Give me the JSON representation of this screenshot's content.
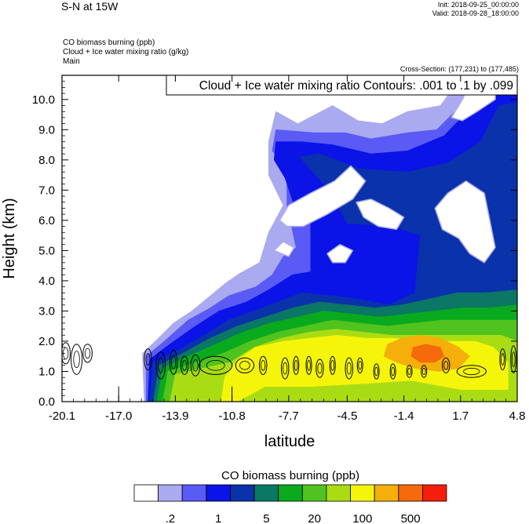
{
  "header": {
    "title": "S-N at 15W",
    "init": "Init: 2018-09-25_00:00:00",
    "valid": "Valid: 2018-09-28_18:00:00",
    "fields": [
      "CO biomass burning   (ppb)",
      "Cloud + Ice water mixing ratio   (g/kg)",
      "Main"
    ],
    "cross_section": "Cross-Section: (177,231) to (177,485)"
  },
  "chart_data": {
    "type": "heatmap",
    "contour_label": "Cloud + Ice water mixing ratio Contours: .001 to .1 by .099",
    "xlabel": "latitude",
    "ylabel": "Height (km)",
    "xlim": [
      -20.1,
      4.8
    ],
    "ylim": [
      0.0,
      10.8
    ],
    "x_ticks": [
      "-20.1",
      "-17.0",
      "-13.9",
      "-10.8",
      "-7.7",
      "-4.5",
      "-1.4",
      "1.7",
      "4.8"
    ],
    "y_ticks": [
      "0.0",
      "1.0",
      "2.0",
      "3.0",
      "4.0",
      "5.0",
      "6.0",
      "7.0",
      "8.0",
      "9.0",
      "10.0"
    ],
    "colorbar": {
      "title": "CO biomass burning  (ppb)",
      "colors": [
        "#ffffff",
        "#aaaaf0",
        "#5a5af5",
        "#0a14e6",
        "#0a32aa",
        "#0a7864",
        "#0aaa1e",
        "#50c31e",
        "#aadc14",
        "#f5f50a",
        "#f5af0a",
        "#f56a0a",
        "#f51e0a"
      ],
      "labels": [
        ".2",
        "1",
        "5",
        "20",
        "100",
        "500"
      ],
      "label_slots": [
        1.5,
        3.5,
        5.5,
        7.5,
        9.5,
        11.5
      ]
    },
    "bands": [
      {
        "level": 1,
        "points": [
          [
            -15.6,
            0
          ],
          [
            -15.7,
            1.6
          ],
          [
            -15.0,
            2.0
          ],
          [
            -14.0,
            2.6
          ],
          [
            -13.0,
            3.0
          ],
          [
            -12.0,
            3.5
          ],
          [
            -11.2,
            3.9
          ],
          [
            -10.5,
            4.2
          ],
          [
            -9.3,
            4.6
          ],
          [
            -8.8,
            5.6
          ],
          [
            -8.0,
            6.5
          ],
          [
            -8.8,
            7.5
          ],
          [
            -8.8,
            8.6
          ],
          [
            -8.4,
            9.6
          ],
          [
            -7.2,
            9.2
          ],
          [
            -5.3,
            9.8
          ],
          [
            -3.9,
            9.3
          ],
          [
            -2.6,
            9.2
          ],
          [
            -1.2,
            9.6
          ],
          [
            0.6,
            9.8
          ],
          [
            1.8,
            10.8
          ],
          [
            4.8,
            10.8
          ],
          [
            4.8,
            0
          ]
        ]
      },
      {
        "level": 2,
        "points": [
          [
            -15.5,
            0
          ],
          [
            -15.5,
            1.5
          ],
          [
            -14.5,
            2.0
          ],
          [
            -13.2,
            2.7
          ],
          [
            -12.0,
            3.1
          ],
          [
            -11.0,
            3.5
          ],
          [
            -9.5,
            3.8
          ],
          [
            -8.6,
            4.2
          ],
          [
            -8.0,
            4.8
          ],
          [
            -7.3,
            5.1
          ],
          [
            -7.8,
            6.5
          ],
          [
            -7.8,
            7.7
          ],
          [
            -8.6,
            8.3
          ],
          [
            -8.4,
            9.0
          ],
          [
            -6.3,
            8.9
          ],
          [
            -4.6,
            8.9
          ],
          [
            -3.2,
            8.7
          ],
          [
            -1.2,
            8.9
          ],
          [
            0.4,
            9.0
          ],
          [
            2.4,
            10.2
          ],
          [
            3.5,
            10.8
          ],
          [
            4.8,
            10.8
          ],
          [
            4.8,
            0
          ]
        ]
      },
      {
        "level": 3,
        "points": [
          [
            -15.4,
            0
          ],
          [
            -15.3,
            1.4
          ],
          [
            -14.2,
            1.9
          ],
          [
            -12.8,
            2.5
          ],
          [
            -11.5,
            3.0
          ],
          [
            -10.0,
            3.3
          ],
          [
            -8.8,
            3.7
          ],
          [
            -7.5,
            4.2
          ],
          [
            -6.5,
            4.3
          ],
          [
            -6.5,
            6.0
          ],
          [
            -7.4,
            6.5
          ],
          [
            -7.9,
            7.4
          ],
          [
            -8.5,
            8.0
          ],
          [
            -8.4,
            8.6
          ],
          [
            -7.0,
            8.6
          ],
          [
            -5.3,
            8.5
          ],
          [
            -3.2,
            8.2
          ],
          [
            -1.2,
            8.3
          ],
          [
            0.8,
            8.8
          ],
          [
            2.4,
            9.8
          ],
          [
            3.6,
            10.6
          ],
          [
            4.8,
            10.6
          ],
          [
            4.8,
            0
          ]
        ]
      },
      {
        "level": 4,
        "points": [
          [
            -15.3,
            0
          ],
          [
            -15.1,
            1.3
          ],
          [
            -13.8,
            1.7
          ],
          [
            -12.3,
            2.2
          ],
          [
            -11.0,
            2.7
          ],
          [
            -9.6,
            3.0
          ],
          [
            -8.3,
            3.3
          ],
          [
            -7.0,
            3.6
          ],
          [
            -5.2,
            3.5
          ],
          [
            -4.0,
            3.4
          ],
          [
            -2.2,
            3.2
          ],
          [
            -0.8,
            3.6
          ],
          [
            -0.5,
            5.5
          ],
          [
            -2.0,
            5.8
          ],
          [
            -4.5,
            5.9
          ],
          [
            -5.5,
            7.0
          ],
          [
            -7.1,
            8.1
          ],
          [
            -6.0,
            8.2
          ],
          [
            -3.8,
            7.7
          ],
          [
            -1.2,
            7.6
          ],
          [
            1.0,
            7.9
          ],
          [
            2.8,
            8.6
          ],
          [
            3.8,
            9.8
          ],
          [
            4.8,
            9.9
          ],
          [
            4.8,
            0
          ]
        ]
      },
      {
        "level": 5,
        "points": [
          [
            -15.1,
            0
          ],
          [
            -14.8,
            1.2
          ],
          [
            -13.5,
            1.6
          ],
          [
            -12.0,
            2.1
          ],
          [
            -10.5,
            2.5
          ],
          [
            -9.0,
            2.8
          ],
          [
            -7.5,
            3.1
          ],
          [
            -6.0,
            3.3
          ],
          [
            -4.5,
            3.2
          ],
          [
            -3.0,
            3.1
          ],
          [
            -1.5,
            3.2
          ],
          [
            0.0,
            3.4
          ],
          [
            1.5,
            3.6
          ],
          [
            3.0,
            3.6
          ],
          [
            4.8,
            3.7
          ],
          [
            4.8,
            0
          ]
        ]
      },
      {
        "level": 6,
        "points": [
          [
            -14.9,
            0
          ],
          [
            -14.6,
            1.1
          ],
          [
            -13.2,
            1.5
          ],
          [
            -11.7,
            1.9
          ],
          [
            -10.2,
            2.3
          ],
          [
            -8.7,
            2.6
          ],
          [
            -7.2,
            2.8
          ],
          [
            -5.8,
            3.0
          ],
          [
            -4.2,
            2.9
          ],
          [
            -2.7,
            2.8
          ],
          [
            -1.2,
            2.9
          ],
          [
            0.3,
            3.0
          ],
          [
            1.8,
            3.1
          ],
          [
            3.3,
            3.1
          ],
          [
            4.8,
            3.2
          ],
          [
            4.8,
            0
          ]
        ]
      },
      {
        "level": 7,
        "points": [
          [
            -14.6,
            0
          ],
          [
            -14.3,
            1.0
          ],
          [
            -12.8,
            1.3
          ],
          [
            -11.3,
            1.6
          ],
          [
            -9.8,
            2.0
          ],
          [
            -8.3,
            2.3
          ],
          [
            -6.8,
            2.5
          ],
          [
            -5.3,
            2.7
          ],
          [
            -3.8,
            2.6
          ],
          [
            -2.3,
            2.5
          ],
          [
            -0.8,
            2.6
          ],
          [
            0.7,
            2.7
          ],
          [
            2.2,
            2.7
          ],
          [
            3.7,
            2.7
          ],
          [
            4.8,
            2.7
          ],
          [
            4.8,
            0
          ]
        ]
      },
      {
        "level": 8,
        "points": [
          [
            -14.2,
            0
          ],
          [
            -13.9,
            0.9
          ],
          [
            -12.4,
            1.1
          ],
          [
            -10.9,
            1.3
          ],
          [
            -9.6,
            1.8
          ],
          [
            -8.1,
            2.1
          ],
          [
            -6.6,
            2.3
          ],
          [
            -5.1,
            2.4
          ],
          [
            -3.6,
            2.3
          ],
          [
            -2.1,
            2.2
          ],
          [
            -0.6,
            2.2
          ],
          [
            0.9,
            2.2
          ],
          [
            2.4,
            2.2
          ],
          [
            3.9,
            2.2
          ],
          [
            4.8,
            2.0
          ],
          [
            4.8,
            0
          ]
        ]
      },
      {
        "level": 9,
        "points": [
          [
            -11.4,
            0
          ],
          [
            -11.2,
            0.8
          ],
          [
            -10.5,
            1.4
          ],
          [
            -9.5,
            1.8
          ],
          [
            -8.0,
            2.0
          ],
          [
            -6.5,
            2.1
          ],
          [
            -5.0,
            2.2
          ],
          [
            -3.5,
            2.1
          ],
          [
            -2.0,
            2.1
          ],
          [
            -0.5,
            2.0
          ],
          [
            1.0,
            2.0
          ],
          [
            2.5,
            2.0
          ],
          [
            3.5,
            1.8
          ],
          [
            4.3,
            1.3
          ],
          [
            4.3,
            0.4
          ],
          [
            1.7,
            0.4
          ],
          [
            -1.0,
            0.7
          ],
          [
            -3.5,
            0.6
          ],
          [
            -6.5,
            0.5
          ],
          [
            -9.0,
            0.5
          ],
          [
            -10.5,
            0.0
          ]
        ]
      },
      {
        "level": 10,
        "points": [
          [
            -2.3,
            1.9
          ],
          [
            -1.5,
            2.1
          ],
          [
            -0.5,
            2.2
          ],
          [
            0.6,
            2.1
          ],
          [
            1.6,
            1.8
          ],
          [
            2.2,
            1.5
          ],
          [
            1.6,
            1.1
          ],
          [
            0.5,
            1.0
          ],
          [
            -0.8,
            1.1
          ],
          [
            -1.8,
            1.3
          ],
          [
            -2.5,
            1.5
          ]
        ]
      },
      {
        "level": 11,
        "points": [
          [
            -0.9,
            1.8
          ],
          [
            -0.2,
            1.9
          ],
          [
            0.6,
            1.8
          ],
          [
            0.8,
            1.5
          ],
          [
            0.3,
            1.3
          ],
          [
            -0.5,
            1.3
          ],
          [
            -1.0,
            1.5
          ]
        ]
      }
    ],
    "clouds": [
      {
        "points": [
          [
            -8.2,
            6.0
          ],
          [
            -7.7,
            6.5
          ],
          [
            -6.5,
            6.9
          ],
          [
            -5.2,
            7.3
          ],
          [
            -4.3,
            7.8
          ],
          [
            -3.5,
            7.3
          ],
          [
            -4.2,
            6.7
          ],
          [
            -5.6,
            6.2
          ],
          [
            -6.9,
            5.8
          ],
          [
            -7.8,
            5.8
          ]
        ]
      },
      {
        "points": [
          [
            -4.0,
            6.6
          ],
          [
            -3.2,
            6.7
          ],
          [
            -2.2,
            6.4
          ],
          [
            -1.4,
            6.1
          ],
          [
            -1.8,
            5.7
          ],
          [
            -2.8,
            5.8
          ],
          [
            -3.6,
            6.1
          ]
        ]
      },
      {
        "points": [
          [
            0.3,
            6.4
          ],
          [
            1.0,
            6.9
          ],
          [
            2.0,
            7.3
          ],
          [
            3.0,
            6.9
          ],
          [
            3.3,
            6.0
          ],
          [
            3.6,
            5.1
          ],
          [
            3.0,
            4.6
          ],
          [
            2.2,
            4.9
          ],
          [
            1.6,
            5.4
          ],
          [
            0.7,
            5.7
          ]
        ]
      },
      {
        "points": [
          [
            1.2,
            9.4
          ],
          [
            1.8,
            10.0
          ],
          [
            2.4,
            10.8
          ],
          [
            3.6,
            10.8
          ],
          [
            3.6,
            10.0
          ],
          [
            2.6,
            9.6
          ],
          [
            1.8,
            9.3
          ]
        ]
      },
      {
        "points": [
          [
            -8.5,
            5.0
          ],
          [
            -8.0,
            5.3
          ],
          [
            -7.4,
            5.1
          ],
          [
            -7.7,
            4.8
          ]
        ]
      },
      {
        "points": [
          [
            -5.6,
            4.9
          ],
          [
            -4.9,
            5.2
          ],
          [
            -4.2,
            5.0
          ],
          [
            -4.6,
            4.6
          ],
          [
            -5.3,
            4.6
          ]
        ]
      }
    ],
    "contours": [
      {
        "cx": -19.9,
        "cy": 1.6,
        "rx": 0.25,
        "ry": 0.35
      },
      {
        "cx": -19.3,
        "cy": 1.4,
        "rx": 0.3,
        "ry": 0.5
      },
      {
        "cx": -18.7,
        "cy": 1.6,
        "rx": 0.25,
        "ry": 0.3
      },
      {
        "cx": -15.4,
        "cy": 1.4,
        "rx": 0.2,
        "ry": 0.35
      },
      {
        "cx": -14.7,
        "cy": 1.2,
        "rx": 0.25,
        "ry": 0.45
      },
      {
        "cx": -14.0,
        "cy": 1.3,
        "rx": 0.2,
        "ry": 0.4
      },
      {
        "cx": -13.4,
        "cy": 1.2,
        "rx": 0.2,
        "ry": 0.3
      },
      {
        "cx": -12.8,
        "cy": 1.2,
        "rx": 0.25,
        "ry": 0.35
      },
      {
        "cx": -11.7,
        "cy": 1.2,
        "rx": 0.9,
        "ry": 0.3
      },
      {
        "cx": -10.1,
        "cy": 1.2,
        "rx": 0.5,
        "ry": 0.25
      },
      {
        "cx": -9.1,
        "cy": 1.2,
        "rx": 0.2,
        "ry": 0.3
      },
      {
        "cx": -7.9,
        "cy": 1.1,
        "rx": 0.2,
        "ry": 0.35
      },
      {
        "cx": -7.3,
        "cy": 1.2,
        "rx": 0.15,
        "ry": 0.3
      },
      {
        "cx": -6.6,
        "cy": 1.2,
        "rx": 0.15,
        "ry": 0.3
      },
      {
        "cx": -6.0,
        "cy": 1.1,
        "rx": 0.2,
        "ry": 0.3
      },
      {
        "cx": -5.3,
        "cy": 1.2,
        "rx": 0.15,
        "ry": 0.3
      },
      {
        "cx": -4.4,
        "cy": 1.1,
        "rx": 0.2,
        "ry": 0.35
      },
      {
        "cx": -3.8,
        "cy": 1.2,
        "rx": 0.15,
        "ry": 0.25
      },
      {
        "cx": -2.9,
        "cy": 1.0,
        "rx": 0.15,
        "ry": 0.25
      },
      {
        "cx": -2.0,
        "cy": 1.0,
        "rx": 0.15,
        "ry": 0.25
      },
      {
        "cx": -1.1,
        "cy": 1.0,
        "rx": 0.15,
        "ry": 0.2
      },
      {
        "cx": -0.3,
        "cy": 1.0,
        "rx": 0.15,
        "ry": 0.2
      },
      {
        "cx": 0.9,
        "cy": 1.2,
        "rx": 0.2,
        "ry": 0.25
      },
      {
        "cx": 2.3,
        "cy": 1.0,
        "rx": 0.8,
        "ry": 0.2
      },
      {
        "cx": 4.0,
        "cy": 1.4,
        "rx": 0.15,
        "ry": 0.35
      },
      {
        "cx": 4.6,
        "cy": 1.4,
        "rx": 0.15,
        "ry": 0.45
      }
    ],
    "ticks_mark": [
      [
        -17.0,
        0.5
      ],
      [
        -10.8,
        0.5
      ]
    ]
  }
}
